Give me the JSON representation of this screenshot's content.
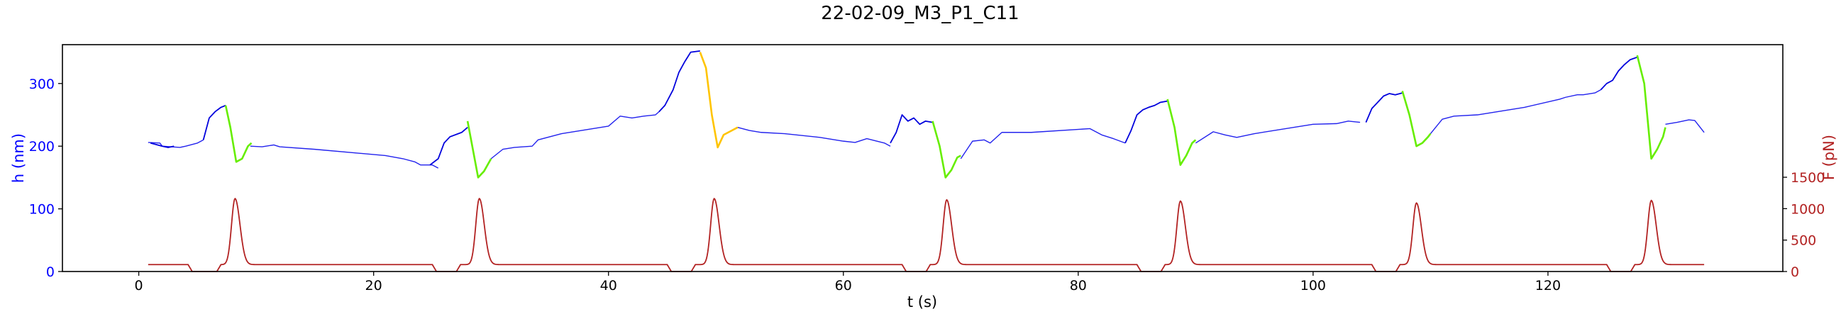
{
  "chart_data": {
    "type": "line",
    "title": "22-02-09_M3_P1_C11",
    "xlabel": "t (s)",
    "ylabel_left": "h (nm)",
    "ylabel_right": "F (pN)",
    "xlim": [
      -6.5,
      140
    ],
    "ylim_left": [
      0,
      362
    ],
    "ylim_right": [
      0,
      3610
    ],
    "x_ticks": [
      0,
      20,
      40,
      60,
      80,
      100,
      120
    ],
    "x_tick_labels": [
      "0",
      "20",
      "40",
      "60",
      "80",
      "100",
      "120"
    ],
    "y_left_ticks": [
      0,
      100,
      200,
      300
    ],
    "y_left_tick_labels": [
      "0",
      "100",
      "200",
      "300"
    ],
    "y_right_ticks": [
      0,
      500,
      1000,
      1500
    ],
    "y_right_tick_labels": [
      "0",
      "500",
      "1000",
      "1500"
    ],
    "colors": {
      "left_axis": "#0000ff",
      "right_axis": "#b22222",
      "baseline": "#2222ee",
      "ramp": "#0000dd",
      "release": "#66ee00",
      "release_alt": "#ffc400",
      "force": "#b22222"
    },
    "force_pulses": [
      {
        "center": 8.2,
        "peak": 1160
      },
      {
        "center": 29.0,
        "peak": 1160
      },
      {
        "center": 49.0,
        "peak": 1160
      },
      {
        "center": 68.8,
        "peak": 1140
      },
      {
        "center": 88.7,
        "peak": 1120
      },
      {
        "center": 108.8,
        "peak": 1090
      },
      {
        "center": 128.8,
        "peak": 1130
      }
    ],
    "force_series": {
      "name": "F",
      "baseline": 110,
      "dips": [
        [
          4.2,
          7.0
        ],
        [
          25.0,
          27.4
        ],
        [
          45.0,
          47.4
        ],
        [
          65.0,
          67.4
        ],
        [
          85.0,
          87.4
        ],
        [
          105.0,
          107.4
        ],
        [
          125.0,
          127.4
        ]
      ]
    },
    "h_baseline_series": [
      {
        "name": "h",
        "x": [
          0.8,
          1.8,
          2.0,
          3.5,
          4.0,
          5.0,
          5.5
        ],
        "y": [
          206,
          205,
          200,
          198,
          200,
          205,
          210
        ]
      },
      {
        "name": "h",
        "x": [
          9.5,
          10.5,
          11.5,
          12.0,
          15.0,
          21.0,
          22.5,
          23.5,
          24.0,
          25.0,
          25.5
        ],
        "y": [
          200,
          199,
          202,
          199,
          195,
          185,
          180,
          175,
          170,
          170,
          165
        ]
      },
      {
        "name": "h",
        "x": [
          30.0,
          31.0,
          32.0,
          33.5,
          34.0,
          36.0,
          40.0,
          41.0,
          42.0,
          43.0,
          44.0,
          44.3
        ],
        "y": [
          180,
          195,
          198,
          200,
          210,
          220,
          232,
          248,
          245,
          248,
          250,
          255
        ]
      },
      {
        "name": "h",
        "x": [
          51.0,
          52.0,
          53.0,
          55.0,
          58.0,
          60.0,
          61.0,
          62.0,
          63.5,
          64.0
        ],
        "y": [
          230,
          225,
          222,
          220,
          214,
          208,
          206,
          212,
          205,
          200
        ]
      },
      {
        "name": "h",
        "x": [
          70.0,
          71.0,
          72.0,
          72.5,
          73.5,
          76.0,
          81.0,
          82.0,
          83.0,
          84.0
        ],
        "y": [
          180,
          208,
          210,
          205,
          222,
          222,
          228,
          218,
          212,
          205
        ]
      },
      {
        "name": "h",
        "x": [
          90.0,
          91.5,
          92.5,
          93.5,
          95.0,
          100.0,
          102.0,
          103.0,
          104.0
        ],
        "y": [
          205,
          223,
          218,
          214,
          220,
          235,
          236,
          240,
          238
        ]
      },
      {
        "name": "h",
        "x": [
          110.0,
          111.0,
          112.0,
          114.0,
          118.0,
          121.0,
          121.5,
          122.5,
          123.0,
          124.0,
          124.5
        ],
        "y": [
          220,
          243,
          248,
          250,
          262,
          275,
          278,
          282,
          282,
          285,
          290
        ]
      },
      {
        "name": "h",
        "x": [
          130.0,
          131.0,
          132.0,
          132.5,
          133.3
        ],
        "y": [
          235,
          238,
          242,
          241,
          222
        ]
      }
    ],
    "h_ramp_series": [
      {
        "name": "h",
        "x": [
          1.0,
          2.0,
          2.5,
          3.0
        ],
        "y": [
          205,
          200,
          198,
          200
        ]
      },
      {
        "name": "h",
        "x": [
          5.5,
          6.0,
          6.5,
          7.0,
          7.4
        ],
        "y": [
          210,
          245,
          255,
          262,
          265
        ]
      },
      {
        "name": "h",
        "x": [
          24.8,
          25.5,
          26.0,
          26.5,
          27.5,
          28.0
        ],
        "y": [
          170,
          180,
          205,
          215,
          222,
          230
        ]
      },
      {
        "name": "h",
        "x": [
          44.3,
          44.8,
          45.5,
          46.0,
          46.5,
          47.0,
          47.8
        ],
        "y": [
          255,
          265,
          290,
          318,
          335,
          350,
          352
        ]
      },
      {
        "name": "h",
        "x": [
          64.0,
          64.5,
          65.0,
          65.5,
          66.0,
          66.5,
          67.0,
          67.6
        ],
        "y": [
          205,
          222,
          250,
          240,
          245,
          235,
          240,
          238
        ]
      },
      {
        "name": "h",
        "x": [
          84.0,
          84.5,
          85.0,
          85.5,
          86.0,
          86.5,
          87.0,
          87.6
        ],
        "y": [
          205,
          225,
          250,
          258,
          262,
          265,
          270,
          272
        ]
      },
      {
        "name": "h",
        "x": [
          104.5,
          105.0,
          105.5,
          106.0,
          106.5,
          107.0,
          107.6
        ],
        "y": [
          238,
          260,
          270,
          280,
          284,
          282,
          285
        ]
      },
      {
        "name": "h",
        "x": [
          124.5,
          125.0,
          125.5,
          126.0,
          126.5,
          127.0,
          127.6
        ],
        "y": [
          290,
          300,
          305,
          320,
          330,
          338,
          342
        ]
      }
    ],
    "h_release_series": [
      {
        "name": "h",
        "x": [
          7.4,
          7.8,
          8.3,
          8.8,
          9.3,
          9.6
        ],
        "y": [
          265,
          230,
          175,
          180,
          200,
          205
        ],
        "color": "release"
      },
      {
        "name": "h",
        "x": [
          28.0,
          28.4,
          28.9,
          29.4,
          30.0
        ],
        "y": [
          240,
          200,
          150,
          160,
          180
        ],
        "color": "release"
      },
      {
        "name": "h",
        "x": [
          47.8,
          48.3,
          48.8,
          49.3,
          49.8,
          50.5,
          51.0
        ],
        "y": [
          350,
          325,
          250,
          198,
          218,
          225,
          230
        ],
        "color": "release_alt"
      },
      {
        "name": "h",
        "x": [
          67.6,
          68.2,
          68.7,
          69.2,
          69.7,
          70.0
        ],
        "y": [
          240,
          200,
          150,
          162,
          182,
          185
        ],
        "color": "release"
      },
      {
        "name": "h",
        "x": [
          87.6,
          88.2,
          88.7,
          89.2,
          89.7,
          90.0
        ],
        "y": [
          275,
          230,
          170,
          185,
          205,
          210
        ],
        "color": "release"
      },
      {
        "name": "h",
        "x": [
          107.6,
          108.2,
          108.8,
          109.3,
          109.8,
          110.0
        ],
        "y": [
          288,
          250,
          200,
          205,
          215,
          220
        ],
        "color": "release"
      },
      {
        "name": "h",
        "x": [
          127.6,
          128.2,
          128.8,
          129.3,
          129.8,
          130.0
        ],
        "y": [
          345,
          300,
          180,
          195,
          215,
          230
        ],
        "color": "release"
      }
    ],
    "grid": false,
    "legend": "none"
  }
}
